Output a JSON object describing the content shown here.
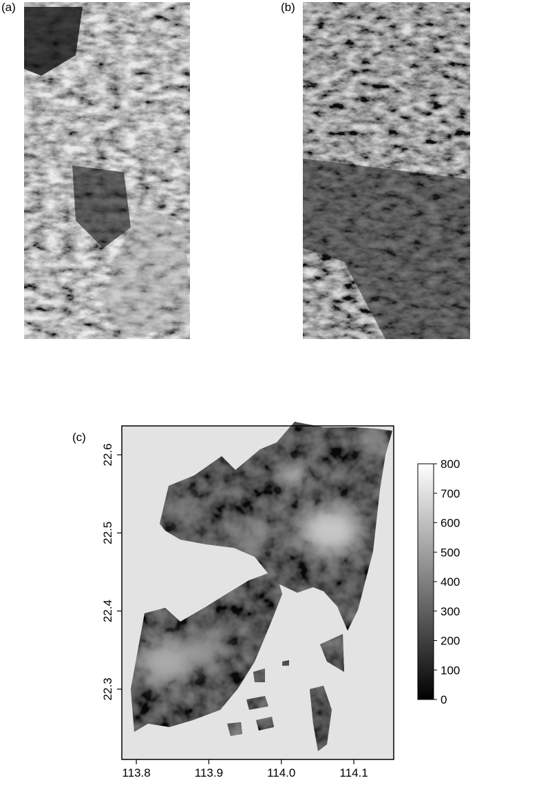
{
  "panels": {
    "a": {
      "label": "(a)"
    },
    "b": {
      "label": "(b)"
    },
    "c": {
      "label": "(c)",
      "xlim": [
        113.78,
        114.155
      ],
      "ylim": [
        22.21,
        22.637
      ],
      "xticks": [
        113.8,
        113.9,
        {
          "value": 114,
          "label": "114.0"
        },
        114.1
      ],
      "yticks": [
        22.3,
        22.4,
        22.5,
        22.6
      ],
      "colorbar": {
        "lim": [
          0,
          800
        ],
        "ticks": [
          0,
          100,
          200,
          300,
          400,
          500,
          600,
          700,
          800
        ]
      }
    }
  }
}
